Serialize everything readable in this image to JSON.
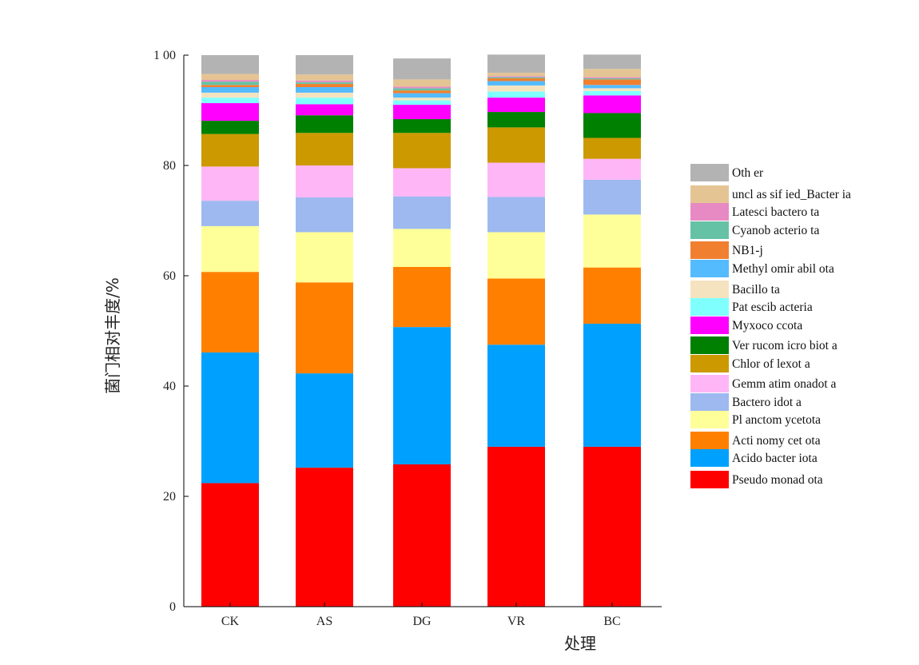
{
  "chart_data": {
    "type": "bar",
    "stacked": true,
    "xlabel": "处理",
    "ylabel": "菌门相对丰度/%",
    "ylim": [
      0,
      100
    ],
    "yticks": [
      0,
      20,
      40,
      60,
      80,
      100
    ],
    "ytick_labels": [
      "0",
      "20",
      "40",
      "60",
      "80",
      "1 00"
    ],
    "categories": [
      "CK",
      "AS",
      "DG",
      "VR",
      "BC"
    ],
    "grid": false,
    "legend_position": "right",
    "series": [
      {
        "name": "Pseudo monad ota",
        "color": "#ff0000",
        "values": [
          22.4,
          25.2,
          25.8,
          29.0,
          29.0
        ]
      },
      {
        "name": "Acido bacter iota",
        "color": "#00a0ff",
        "values": [
          23.7,
          17.1,
          24.9,
          18.5,
          22.3
        ]
      },
      {
        "name": "Acti nomy cet ota",
        "color": "#ff8000",
        "values": [
          14.6,
          16.5,
          10.9,
          12.0,
          10.2
        ]
      },
      {
        "name": "Pl anctom ycetota",
        "color": "#ffff99",
        "values": [
          8.3,
          9.1,
          6.9,
          8.4,
          9.6
        ]
      },
      {
        "name": "Bactero idot a",
        "color": "#9db9f0",
        "values": [
          4.6,
          6.3,
          5.9,
          6.4,
          6.3
        ]
      },
      {
        "name": "Gemm atim onadot a",
        "color": "#ffb6f6",
        "values": [
          6.2,
          5.8,
          5.1,
          6.2,
          3.8
        ]
      },
      {
        "name": "Chlor of lexot a",
        "color": "#cc9900",
        "values": [
          5.9,
          5.9,
          6.4,
          6.4,
          3.8
        ]
      },
      {
        "name": "Ver rucom icro biot a",
        "color": "#008000",
        "values": [
          2.4,
          3.2,
          2.5,
          2.8,
          4.5
        ]
      },
      {
        "name": "Myxoco ccota",
        "color": "#ff00ff",
        "values": [
          3.2,
          2.0,
          2.6,
          2.6,
          3.2
        ]
      },
      {
        "name": "Pat escib acteria",
        "color": "#80ffff",
        "values": [
          1.0,
          1.2,
          0.8,
          1.1,
          0.8
        ]
      },
      {
        "name": "Bacillo ta",
        "color": "#f5e3c0",
        "values": [
          0.9,
          0.9,
          0.5,
          1.1,
          0.5
        ]
      },
      {
        "name": "Methyl omir abil ota",
        "color": "#55bbff",
        "values": [
          1.0,
          1.0,
          0.8,
          0.8,
          0.6
        ]
      },
      {
        "name": "NB1-j",
        "color": "#f08030",
        "values": [
          0.4,
          0.6,
          0.5,
          0.5,
          1.0
        ]
      },
      {
        "name": "Cyanob acterio ta",
        "color": "#66c2a5",
        "values": [
          0.6,
          0.3,
          0.4,
          0.2,
          0.2
        ]
      },
      {
        "name": "Latesci bactero ta",
        "color": "#e78ac3",
        "values": [
          0.3,
          0.3,
          0.3,
          0.2,
          0.2
        ]
      },
      {
        "name": "uncl as sif ied_Bacter ia",
        "color": "#e5c494",
        "values": [
          1.1,
          1.1,
          1.3,
          0.6,
          1.5
        ]
      },
      {
        "name": "Oth er",
        "color": "#b3b3b3",
        "values": [
          3.4,
          3.5,
          3.8,
          3.3,
          2.6
        ]
      }
    ]
  }
}
